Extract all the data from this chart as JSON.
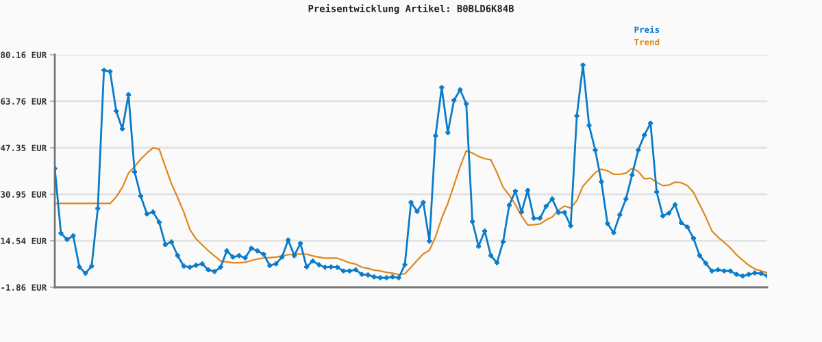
{
  "chart_data": {
    "type": "line",
    "title": "Preisentwicklung Artikel: B0BLD6K84B",
    "categories": [
      null,
      null,
      null,
      null,
      null,
      null,
      null,
      null,
      null,
      null,
      null,
      null,
      null,
      null,
      null,
      null,
      null,
      null,
      null,
      null,
      null,
      null,
      null,
      null,
      null,
      null,
      null,
      null,
      null,
      null,
      null,
      null,
      null,
      null,
      null,
      null,
      null,
      null,
      null,
      null,
      null,
      null,
      null,
      null,
      null,
      null,
      null,
      null,
      null,
      null,
      null,
      null,
      null,
      null,
      null,
      null,
      null,
      null,
      null,
      null,
      null,
      null,
      null,
      null,
      null,
      null,
      null,
      null,
      null,
      null,
      null,
      null,
      null,
      null,
      null,
      null,
      null,
      null,
      null,
      null,
      null,
      null,
      null,
      null,
      null,
      null,
      null,
      null,
      null,
      null,
      null,
      null,
      null,
      null,
      null,
      null,
      null,
      null,
      null,
      null,
      null,
      null,
      null,
      null,
      null,
      null,
      null,
      null,
      null,
      null,
      null,
      null,
      null,
      null,
      null,
      null,
      null
    ],
    "series": [
      {
        "name": "Preis",
        "color": "#0a7bc8",
        "marker": "cross",
        "values": [
          40.0,
          17.2,
          15.0,
          16.3,
          5.3,
          3.1,
          5.6,
          25.9,
          74.7,
          74.2,
          60.3,
          54.0,
          66.1,
          38.8,
          30.3,
          24.0,
          24.7,
          21.1,
          13.2,
          14.1,
          9.3,
          5.6,
          5.2,
          5.9,
          6.4,
          4.3,
          3.7,
          5.2,
          11.0,
          8.8,
          9.3,
          8.5,
          11.9,
          11.0,
          9.8,
          5.8,
          6.4,
          8.8,
          14.8,
          9.3,
          13.6,
          5.3,
          7.4,
          6.1,
          5.2,
          5.3,
          5.2,
          3.9,
          3.9,
          4.3,
          2.7,
          2.5,
          1.8,
          1.5,
          1.5,
          1.8,
          1.5,
          6.1,
          28.1,
          24.9,
          28.1,
          14.4,
          51.6,
          68.6,
          52.7,
          64.1,
          67.8,
          62.8,
          21.3,
          12.6,
          18.0,
          9.3,
          6.8,
          14.2,
          27.1,
          32.0,
          24.7,
          32.3,
          22.5,
          22.5,
          26.7,
          29.3,
          24.5,
          24.5,
          19.8,
          58.6,
          76.5,
          55.2,
          46.5,
          35.4,
          20.6,
          17.4,
          23.7,
          29.3,
          37.8,
          46.5,
          51.8,
          56.0,
          31.8,
          23.3,
          24.3,
          27.3,
          20.9,
          19.4,
          15.4,
          9.3,
          6.6,
          3.9,
          4.3,
          3.9,
          3.9,
          2.7,
          2.1,
          2.7,
          3.2,
          3.0,
          2.2
        ]
      },
      {
        "name": "Trend",
        "color": "#e0861a",
        "marker": "none",
        "values": [
          27.7,
          27.7,
          27.7,
          27.7,
          27.7,
          27.7,
          27.7,
          27.7,
          27.7,
          27.7,
          30.0,
          33.4,
          38.4,
          40.7,
          43.3,
          45.5,
          47.3,
          46.9,
          40.7,
          34.6,
          29.8,
          24.7,
          18.5,
          15.2,
          13.1,
          11.0,
          9.2,
          7.4,
          7.1,
          6.8,
          6.8,
          6.9,
          7.6,
          8.1,
          8.4,
          8.6,
          8.8,
          9.2,
          9.6,
          9.8,
          9.9,
          9.8,
          9.2,
          8.8,
          8.4,
          8.4,
          8.4,
          7.6,
          6.8,
          6.3,
          5.2,
          4.8,
          4.2,
          3.9,
          3.4,
          3.1,
          2.6,
          2.9,
          5.2,
          7.6,
          9.9,
          11.2,
          16.0,
          22.5,
          27.7,
          34.2,
          40.7,
          46.3,
          45.5,
          44.3,
          43.5,
          43.1,
          38.6,
          33.4,
          30.6,
          27.3,
          23.3,
          20.1,
          20.2,
          20.5,
          21.9,
          22.9,
          25.3,
          26.8,
          26.1,
          28.7,
          33.8,
          36.2,
          38.6,
          39.8,
          39.2,
          38.0,
          38.0,
          38.4,
          40.1,
          39.0,
          36.4,
          36.6,
          35.2,
          34.0,
          34.2,
          35.2,
          35.0,
          34.0,
          31.6,
          27.3,
          22.9,
          18.0,
          15.8,
          14.0,
          12.0,
          9.6,
          7.7,
          5.9,
          4.6,
          3.9,
          3.3
        ]
      }
    ],
    "ylim": [
      -1.86,
      80.16
    ],
    "yticks": [
      {
        "value": -1.86,
        "label": "-1.86 EUR"
      },
      {
        "value": 14.54,
        "label": "14.54 EUR"
      },
      {
        "value": 30.95,
        "label": "30.95 EUR"
      },
      {
        "value": 47.35,
        "label": "47.35 EUR"
      },
      {
        "value": 63.76,
        "label": "63.76 EUR"
      },
      {
        "value": 80.16,
        "label": "80.16 EUR"
      }
    ],
    "grid": "y",
    "legend": "top right",
    "line_style": "solid"
  }
}
